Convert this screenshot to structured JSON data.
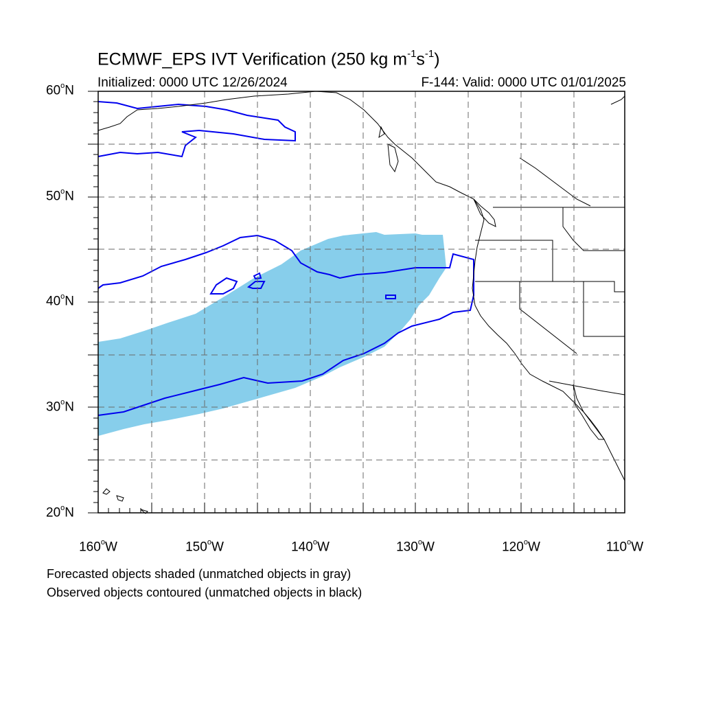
{
  "title": {
    "main": "ECMWF_EPS IVT Verification (250 kg m",
    "sup1": "-1",
    "mid": "s",
    "sup2": "-1",
    "end": ")"
  },
  "subtitle": {
    "initialized": "Initialized: 0000 UTC 12/26/2024",
    "valid": "F-144: Valid: 0000 UTC 01/01/2025"
  },
  "axes": {
    "lat_labels": [
      {
        "num": "60",
        "hemi": "N"
      },
      {
        "num": "50",
        "hemi": "N"
      },
      {
        "num": "40",
        "hemi": "N"
      },
      {
        "num": "30",
        "hemi": "N"
      },
      {
        "num": "20",
        "hemi": "N"
      }
    ],
    "lon_labels": [
      {
        "num": "160",
        "hemi": "W"
      },
      {
        "num": "150",
        "hemi": "W"
      },
      {
        "num": "140",
        "hemi": "W"
      },
      {
        "num": "130",
        "hemi": "W"
      },
      {
        "num": "120",
        "hemi": "W"
      },
      {
        "num": "110",
        "hemi": "W"
      }
    ],
    "lat_range": [
      20,
      60
    ],
    "lon_range": [
      -160,
      -110
    ],
    "grid": "dashed 5 degree"
  },
  "legend": {
    "line1": "Forecasted objects shaded (unmatched objects in gray)",
    "line2": "Observed objects contoured (unmatched objects in black)"
  },
  "colors": {
    "forecast_fill": "#87ceeb",
    "observed_contour": "#0000ee",
    "coastline": "#000000"
  }
}
